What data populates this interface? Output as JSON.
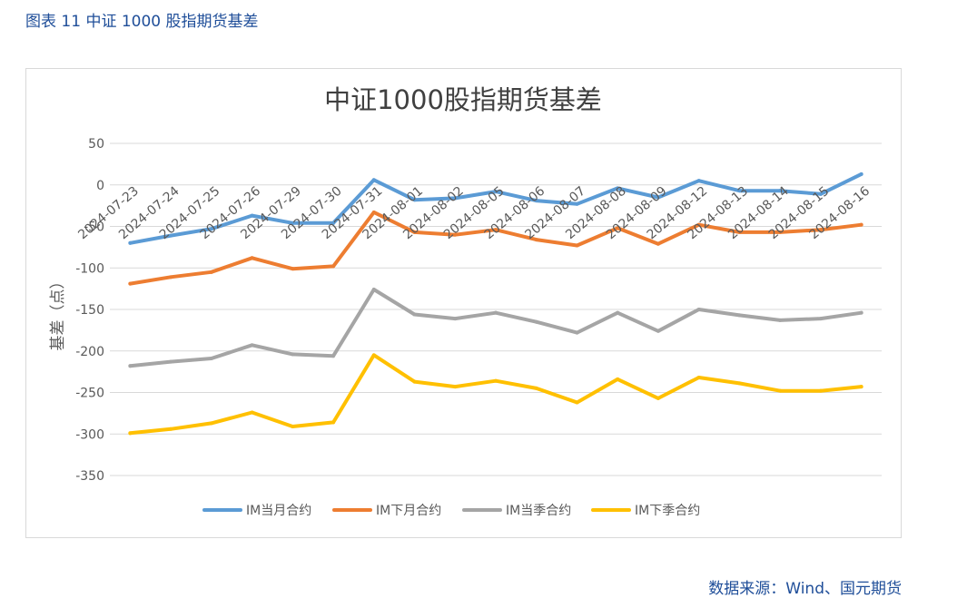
{
  "figure_caption": "图表 11  中证 1000 股指期货基差",
  "source_note": "数据来源：Wind、国元期货",
  "colors": {
    "grid": "#d9d9d9",
    "axis_text": "#595959",
    "title_text": "#404040",
    "caption_blue": "#1f4e99"
  },
  "chart_data": {
    "type": "line",
    "title": "中证1000股指期货基差",
    "xlabel": "",
    "ylabel": "基差（点）",
    "ylim": [
      -350,
      50
    ],
    "yticks": [
      50,
      0,
      -50,
      -100,
      -150,
      -200,
      -250,
      -300,
      -350
    ],
    "grid": true,
    "legend_position": "bottom",
    "categories": [
      "2024-07-23",
      "2024-07-24",
      "2024-07-25",
      "2024-07-26",
      "2024-07-29",
      "2024-07-30",
      "2024-07-31",
      "2024-08-01",
      "2024-08-02",
      "2024-08-05",
      "2024-08-06",
      "2024-08-07",
      "2024-08-08",
      "2024-08-09",
      "2024-08-12",
      "2024-08-13",
      "2024-08-14",
      "2024-08-15",
      "2024-08-16"
    ],
    "series": [
      {
        "name": "IM当月合约",
        "color": "#5b9bd5",
        "values": [
          -70,
          -61,
          -53,
          -37,
          -46,
          -46,
          6,
          -18,
          -16,
          -8,
          -19,
          -23,
          -4,
          -15,
          5,
          -7,
          -7,
          -11,
          13
        ]
      },
      {
        "name": "IM下月合约",
        "color": "#ed7d31",
        "values": [
          -119,
          -111,
          -105,
          -88,
          -101,
          -98,
          -33,
          -57,
          -60,
          -54,
          -66,
          -73,
          -52,
          -71,
          -48,
          -57,
          -57,
          -54,
          -48
        ]
      },
      {
        "name": "IM当季合约",
        "color": "#a5a5a5",
        "values": [
          -218,
          -213,
          -209,
          -193,
          -204,
          -206,
          -126,
          -156,
          -161,
          -154,
          -165,
          -178,
          -154,
          -176,
          -150,
          -157,
          -163,
          -161,
          -154
        ]
      },
      {
        "name": "IM下季合约",
        "color": "#ffc000",
        "values": [
          -299,
          -294,
          -287,
          -274,
          -291,
          -286,
          -205,
          -237,
          -243,
          -236,
          -245,
          -262,
          -234,
          -257,
          -232,
          -239,
          -248,
          -248,
          -243
        ]
      }
    ]
  }
}
